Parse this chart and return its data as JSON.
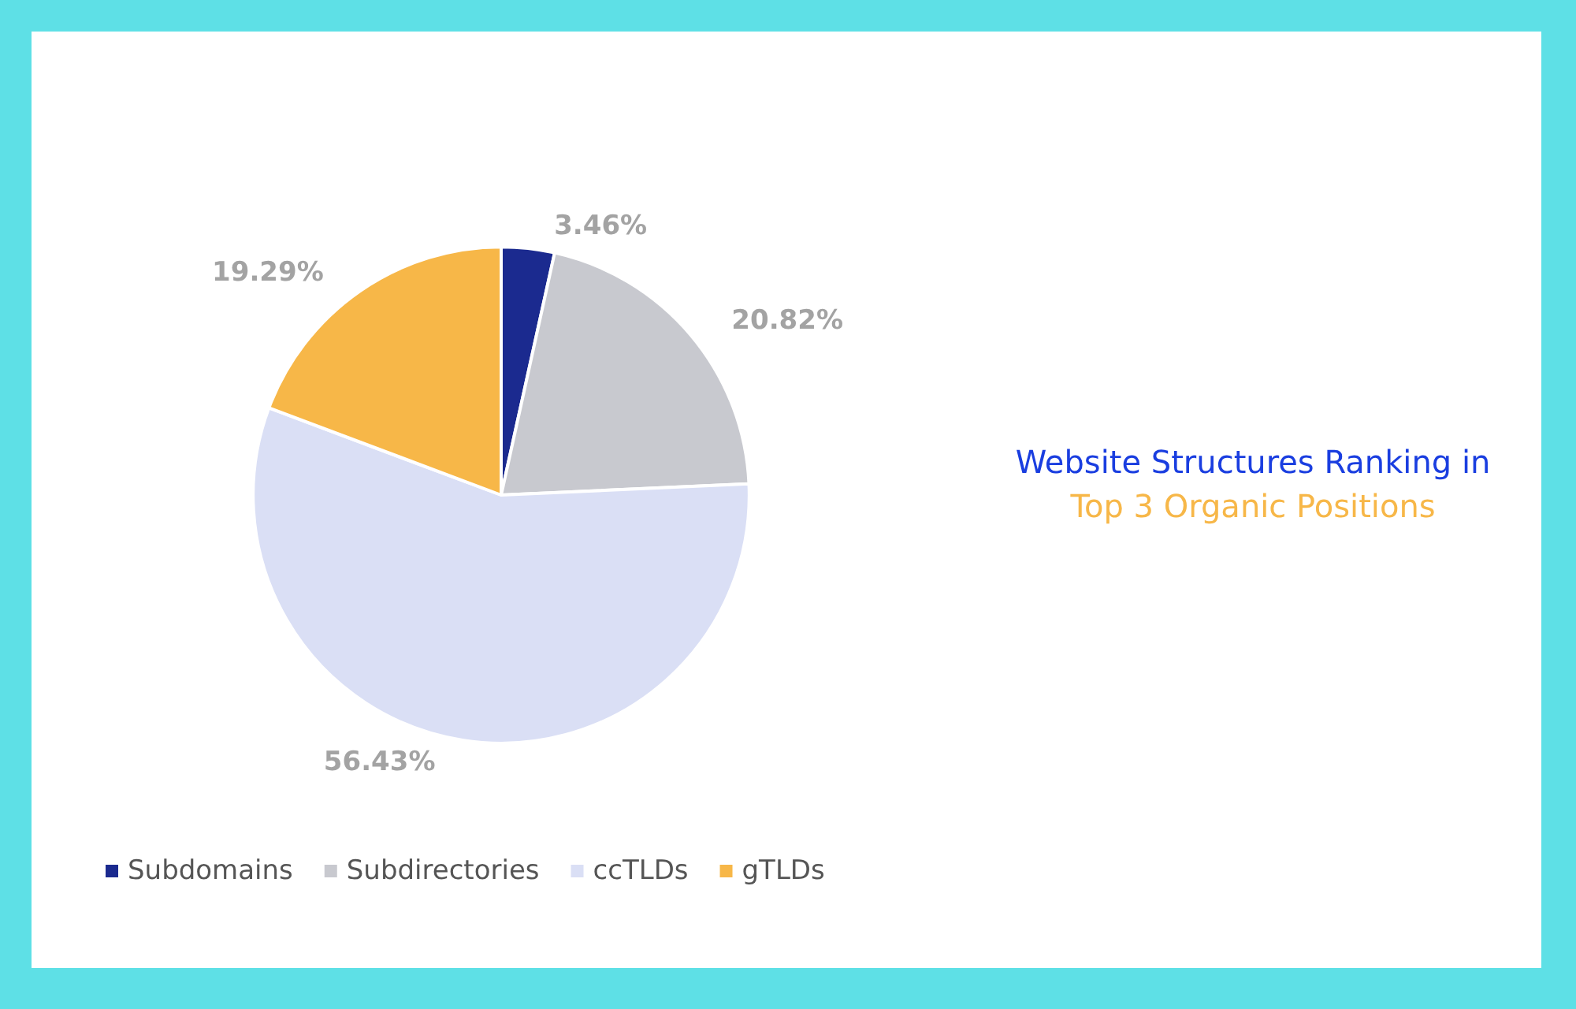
{
  "chart_data": {
    "type": "pie",
    "title": "Website Structures Ranking in",
    "subtitle": "Top 3 Organic Positions",
    "categories": [
      "Subdomains",
      "Subdirectories",
      "ccTLDs",
      "gTLDs"
    ],
    "values": [
      3.46,
      20.82,
      56.43,
      19.29
    ],
    "colors": [
      "#1b2a8f",
      "#c8c9cf",
      "#dadff5",
      "#f7b748"
    ],
    "value_labels": [
      "3.46%",
      "20.82%",
      "56.43%",
      "19.29%"
    ],
    "legend": "bottom left"
  }
}
